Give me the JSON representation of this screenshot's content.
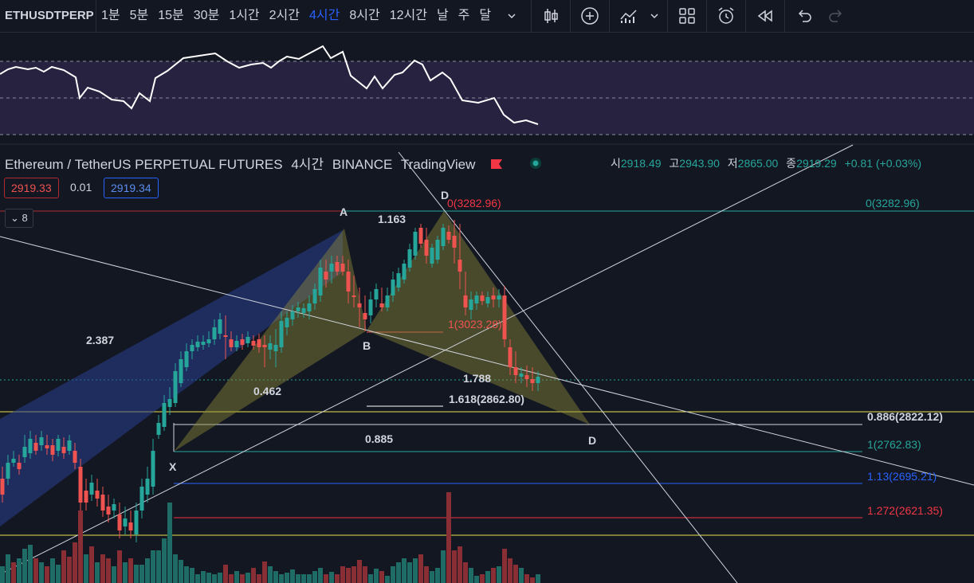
{
  "toolbar": {
    "symbol": "ETHUSDTPERP",
    "intervals": [
      "1분",
      "5분",
      "15분",
      "30분",
      "1시간",
      "2시간",
      "4시간",
      "8시간",
      "12시간",
      "날",
      "주",
      "달"
    ],
    "active_interval": "4시간"
  },
  "legend": {
    "title": "Ethereum / TetherUS PERPETUAL FUTURES",
    "interval": "4시간",
    "exchange": "BINANCE",
    "source": "TradingView",
    "open_label": "시",
    "open": "2918.49",
    "high_label": "고",
    "high": "2943.90",
    "low_label": "저",
    "low": "2865.00",
    "close_label": "종",
    "close": "2919.29",
    "change": "+0.81 (+0.03%)",
    "bid": "2919.33",
    "spread": "0.01",
    "ask": "2919.34",
    "indicators_count": "8"
  },
  "pattern": {
    "points": [
      "X",
      "A",
      "B",
      "D",
      "D"
    ],
    "ratios": [
      "2.387",
      "0.462",
      "1.163",
      "0.885",
      "1.788"
    ]
  },
  "levels": {
    "top_left": "0(3282.96)",
    "top_right": "0(3282.96)",
    "mid": "1(3023.28)",
    "fib_1618": "1.618(2862.80)",
    "fib_0886": "0.886(2822.12)",
    "fib_1": "1(2762.83)",
    "fib_113": "1.13(2695.21)",
    "fib_1272": "1.272(2621.35)"
  },
  "colors": {
    "up": "#26a69a",
    "down": "#ef5350",
    "accent": "#2962ff",
    "background": "#131722"
  }
}
